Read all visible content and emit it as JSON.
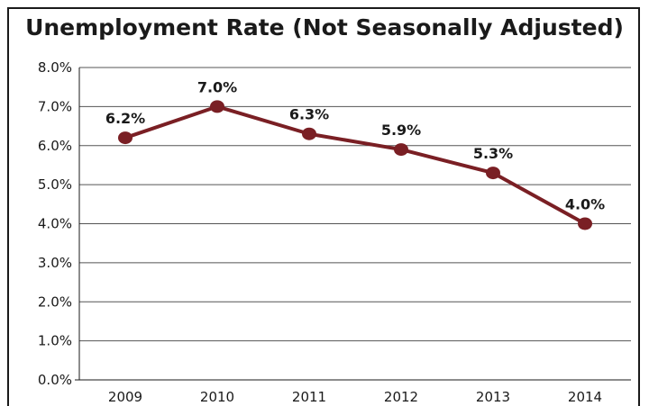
{
  "chart_data": {
    "type": "line",
    "title": "Unemployment Rate (Not Seasonally Adjusted)",
    "categories": [
      "2009",
      "2010",
      "2011",
      "2012",
      "2013",
      "2014"
    ],
    "series": [
      {
        "values": [
          6.2,
          7.0,
          6.3,
          5.9,
          5.3,
          4.0
        ],
        "color": "#7a1f24"
      }
    ],
    "data_labels": [
      "6.2%",
      "7.0%",
      "6.3%",
      "5.9%",
      "5.3%",
      "4.0%"
    ],
    "y_ticks": [
      "0.0%",
      "1.0%",
      "2.0%",
      "3.0%",
      "4.0%",
      "5.0%",
      "6.0%",
      "7.0%",
      "8.0%"
    ],
    "ylim": [
      0,
      8
    ],
    "grid": true,
    "legend": "none"
  }
}
